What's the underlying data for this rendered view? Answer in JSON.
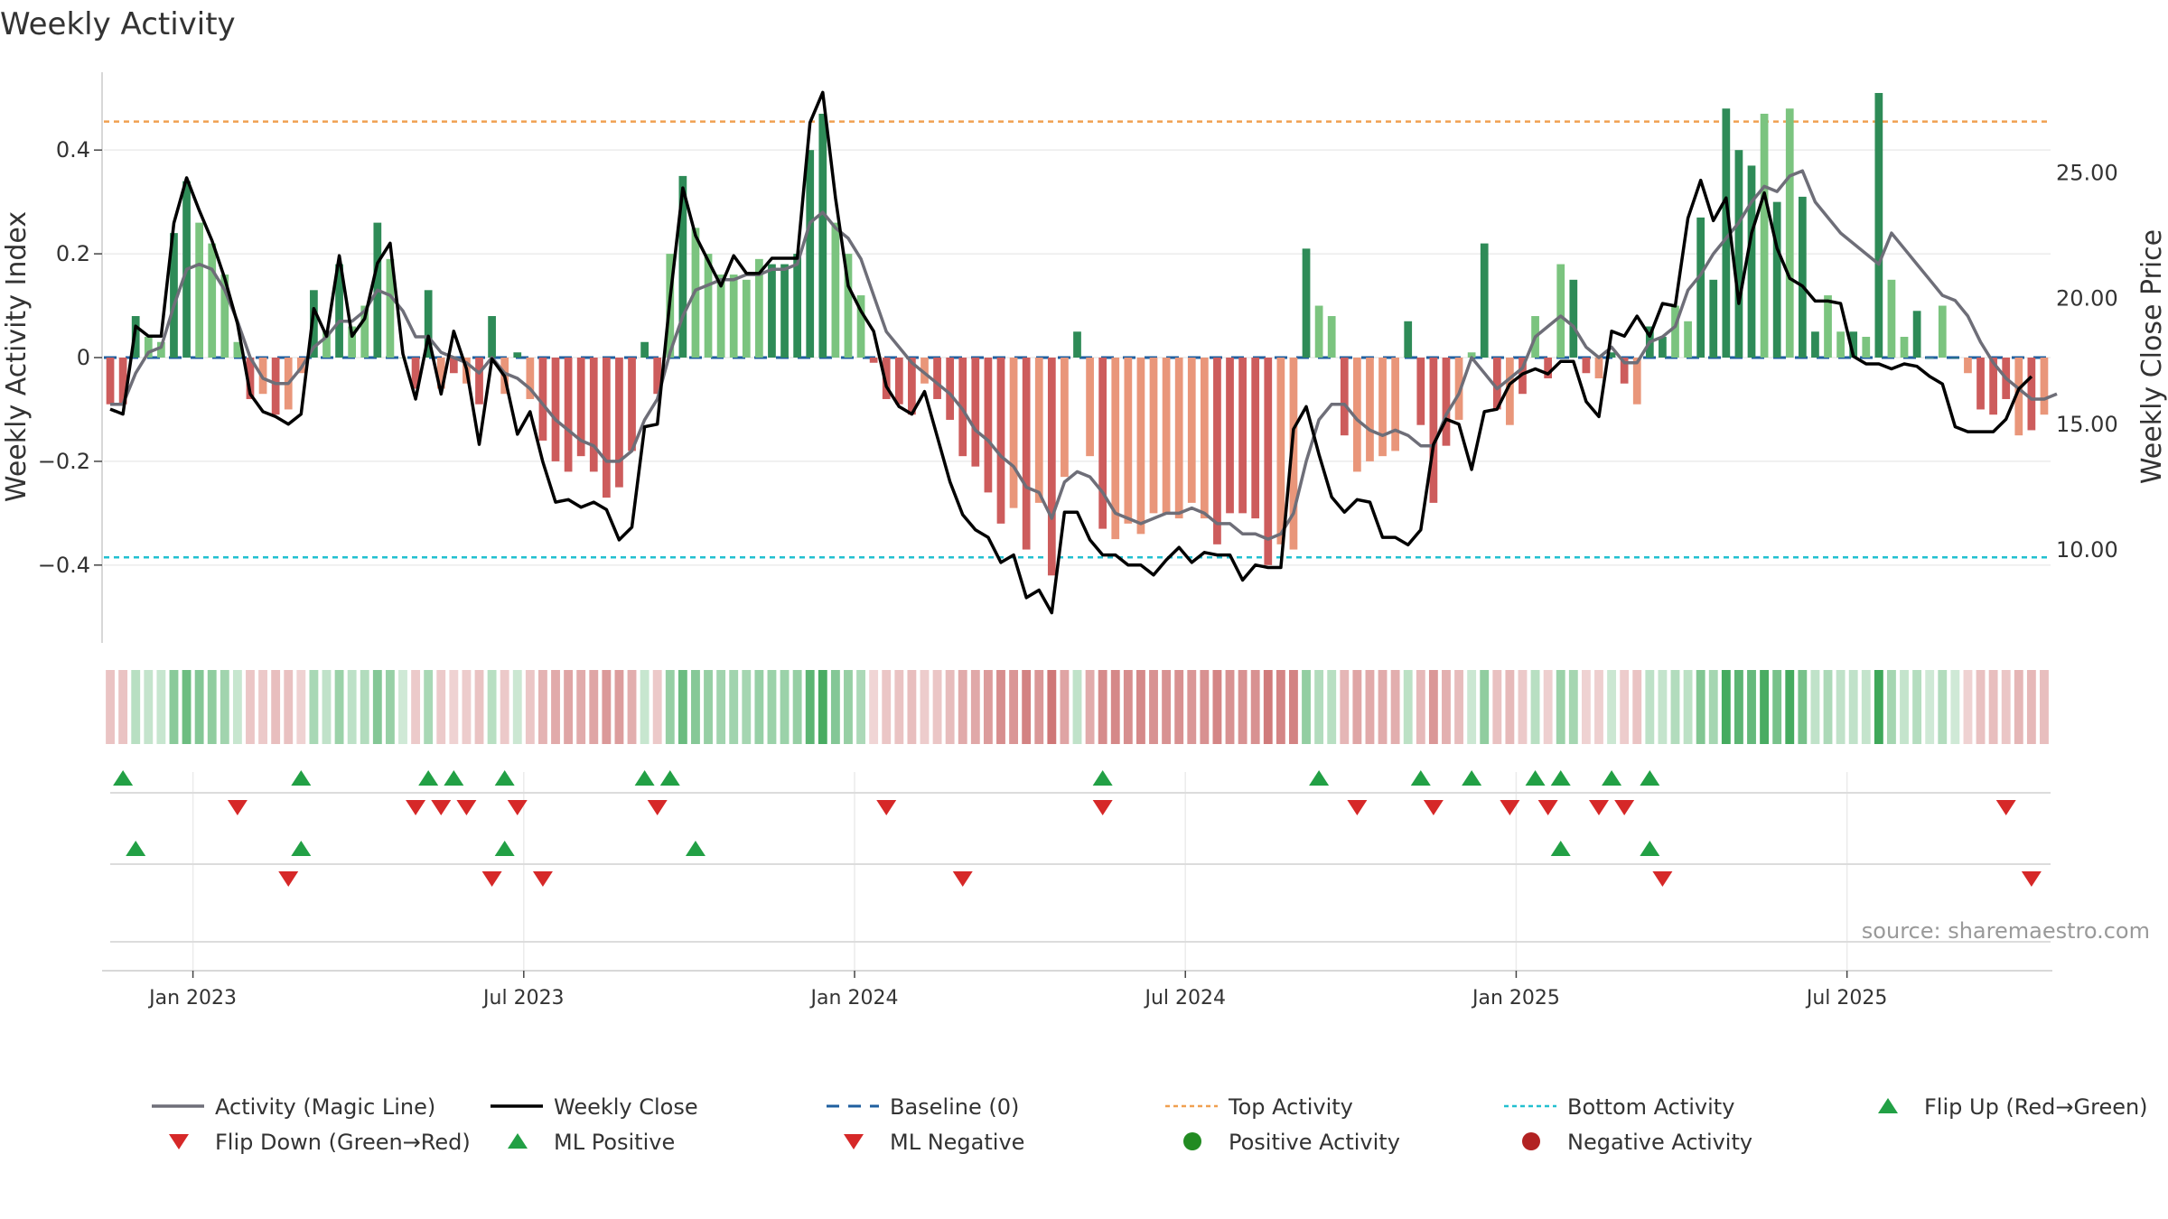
{
  "colors": {
    "strong_green": "#2e8b57",
    "light_green": "#7bc47f",
    "strong_red": "#cd5c5c",
    "light_red": "#e9967a",
    "magic_line": "#6e6e78",
    "close_line": "#000000",
    "baseline": "#1f5f9f",
    "top_line": "#f0a050",
    "bottom_line": "#22c0d0",
    "flip_up": "#22a045",
    "flip_down": "#d62828",
    "positive_dot": "#228b22",
    "negative_dot": "#b22222"
  },
  "chart_data": {
    "type": "bar+line",
    "title": "Weekly Activity",
    "ylabel_left": "Weekly Activity Index",
    "ylabel_right": "Weekly Close Price",
    "left_ticks": [
      {
        "value": 0.4,
        "label": "0.4"
      },
      {
        "value": 0.2,
        "label": "0.2"
      },
      {
        "value": 0,
        "label": "0"
      },
      {
        "value": -0.2,
        "label": "−0.2"
      },
      {
        "value": -0.4,
        "label": "−0.4"
      }
    ],
    "left_ylim": [
      -0.55,
      0.55
    ],
    "right_ticks": [
      {
        "value": 25,
        "label": "25.00"
      },
      {
        "value": 20,
        "label": "20.00"
      },
      {
        "value": 15,
        "label": "15.00"
      },
      {
        "value": 10,
        "label": "10.00"
      }
    ],
    "right_ylim": [
      6.3,
      29.0
    ],
    "top_activity": 0.455,
    "bottom_activity": -0.385,
    "x_ticks": [
      "Jan 2023",
      "Jul 2023",
      "Jan 2024",
      "Jul 2024",
      "Jan 2025",
      "Jul 2025"
    ],
    "x_tick_weeks": [
      7,
      33,
      59,
      85,
      111,
      137
    ],
    "activity": [
      -0.09,
      -0.09,
      0.08,
      0.04,
      0.03,
      0.24,
      0.34,
      0.26,
      0.22,
      0.16,
      0.03,
      -0.08,
      -0.07,
      -0.11,
      -0.1,
      -0.03,
      0.13,
      0.05,
      0.18,
      0.06,
      0.1,
      0.26,
      0.19,
      0.0,
      -0.06,
      0.13,
      -0.06,
      -0.03,
      -0.05,
      -0.09,
      0.08,
      -0.07,
      0.01,
      -0.08,
      -0.16,
      -0.2,
      -0.22,
      -0.19,
      -0.22,
      -0.27,
      -0.25,
      -0.18,
      0.03,
      -0.07,
      0.2,
      0.35,
      0.25,
      0.2,
      0.16,
      0.16,
      0.15,
      0.19,
      0.18,
      0.18,
      0.2,
      0.4,
      0.47,
      0.26,
      0.2,
      0.12,
      -0.01,
      -0.08,
      -0.09,
      -0.11,
      -0.05,
      -0.08,
      -0.12,
      -0.19,
      -0.21,
      -0.26,
      -0.32,
      -0.29,
      -0.37,
      -0.28,
      -0.42,
      -0.23,
      0.05,
      -0.19,
      -0.33,
      -0.35,
      -0.32,
      -0.34,
      -0.3,
      -0.3,
      -0.31,
      -0.28,
      -0.31,
      -0.36,
      -0.3,
      -0.3,
      -0.31,
      -0.4,
      -0.36,
      -0.37,
      0.21,
      0.1,
      0.08,
      -0.15,
      -0.22,
      -0.2,
      -0.19,
      -0.18,
      0.07,
      -0.13,
      -0.28,
      -0.17,
      -0.12,
      0.01,
      0.22,
      -0.1,
      -0.13,
      -0.07,
      0.08,
      -0.04,
      0.18,
      0.15,
      -0.03,
      -0.04,
      0.01,
      -0.05,
      -0.09,
      0.06,
      0.04,
      0.1,
      0.07,
      0.27,
      0.15,
      0.48,
      0.4,
      0.37,
      0.47,
      0.3,
      0.48,
      0.31,
      0.05,
      0.12,
      0.05,
      0.05,
      0.04,
      0.51,
      0.15,
      0.04,
      0.09,
      0.0,
      0.1,
      0.0,
      -0.03,
      -0.1,
      -0.11,
      -0.08,
      -0.15,
      -0.14,
      -0.11
    ],
    "activity_strong": [
      1,
      1,
      1,
      0,
      0,
      1,
      1,
      0,
      0,
      0,
      0,
      1,
      0,
      1,
      0,
      0,
      1,
      0,
      1,
      0,
      0,
      1,
      0,
      0,
      1,
      1,
      0,
      1,
      0,
      1,
      1,
      0,
      1,
      0,
      1,
      1,
      1,
      1,
      1,
      1,
      1,
      1,
      1,
      1,
      0,
      1,
      0,
      0,
      0,
      0,
      0,
      0,
      1,
      1,
      1,
      1,
      1,
      0,
      0,
      0,
      1,
      1,
      1,
      1,
      0,
      1,
      1,
      1,
      1,
      1,
      1,
      0,
      1,
      0,
      1,
      0,
      1,
      0,
      1,
      0,
      0,
      0,
      0,
      0,
      0,
      0,
      0,
      1,
      1,
      1,
      1,
      1,
      0,
      0,
      1,
      0,
      0,
      1,
      0,
      0,
      0,
      0,
      1,
      1,
      1,
      1,
      0,
      0,
      1,
      1,
      0,
      1,
      0,
      1,
      0,
      1,
      1,
      0,
      1,
      1,
      0,
      1,
      1,
      0,
      0,
      1,
      1,
      1,
      1,
      1,
      0,
      1,
      0,
      1,
      1,
      0,
      0,
      1,
      0,
      1,
      0,
      0,
      1,
      0,
      0,
      1,
      0,
      1,
      1,
      1,
      0,
      1,
      0,
      0
    ],
    "magic_line": [
      -0.09,
      -0.09,
      -0.03,
      0.01,
      0.02,
      0.1,
      0.17,
      0.18,
      0.17,
      0.13,
      0.07,
      0.0,
      -0.04,
      -0.05,
      -0.05,
      -0.02,
      0.02,
      0.04,
      0.07,
      0.07,
      0.09,
      0.13,
      0.12,
      0.09,
      0.04,
      0.04,
      0.01,
      0.0,
      -0.01,
      -0.03,
      -0.0,
      -0.03,
      -0.04,
      -0.06,
      -0.09,
      -0.12,
      -0.14,
      -0.16,
      -0.17,
      -0.2,
      -0.2,
      -0.18,
      -0.12,
      -0.08,
      0.01,
      0.08,
      0.13,
      0.14,
      0.15,
      0.15,
      0.16,
      0.16,
      0.17,
      0.17,
      0.18,
      0.26,
      0.28,
      0.25,
      0.23,
      0.19,
      0.12,
      0.05,
      0.02,
      -0.01,
      -0.03,
      -0.05,
      -0.07,
      -0.1,
      -0.14,
      -0.16,
      -0.19,
      -0.21,
      -0.25,
      -0.26,
      -0.31,
      -0.24,
      -0.22,
      -0.23,
      -0.26,
      -0.3,
      -0.31,
      -0.32,
      -0.31,
      -0.3,
      -0.3,
      -0.29,
      -0.3,
      -0.32,
      -0.32,
      -0.34,
      -0.34,
      -0.35,
      -0.34,
      -0.3,
      -0.2,
      -0.12,
      -0.09,
      -0.09,
      -0.12,
      -0.14,
      -0.15,
      -0.14,
      -0.15,
      -0.17,
      -0.17,
      -0.11,
      -0.07,
      0.0,
      -0.03,
      -0.06,
      -0.04,
      -0.02,
      0.04,
      0.06,
      0.08,
      0.06,
      0.02,
      -0.0,
      0.02,
      -0.01,
      -0.01,
      0.03,
      0.04,
      0.06,
      0.13,
      0.16,
      0.2,
      0.23,
      0.26,
      0.3,
      0.33,
      0.32,
      0.35,
      0.36,
      0.3,
      0.27,
      0.24,
      0.22,
      0.2,
      0.18,
      0.24,
      0.21,
      0.18,
      0.15,
      0.12,
      0.11,
      0.08,
      0.03,
      -0.01,
      -0.04,
      -0.06,
      -0.08,
      -0.08,
      -0.07
    ],
    "weekly_close": [
      15.6,
      15.4,
      18.9,
      18.5,
      18.5,
      23.0,
      24.8,
      23.5,
      22.3,
      20.8,
      19.0,
      16.2,
      15.5,
      15.3,
      15.0,
      15.4,
      19.6,
      18.5,
      21.7,
      18.5,
      19.2,
      21.4,
      22.2,
      17.8,
      16.0,
      18.5,
      16.2,
      18.7,
      17.2,
      14.2,
      17.6,
      16.9,
      14.6,
      15.5,
      13.5,
      11.9,
      12.0,
      11.7,
      11.9,
      11.6,
      10.4,
      10.9,
      14.9,
      15.0,
      20.0,
      24.4,
      22.5,
      21.5,
      20.5,
      21.7,
      21.0,
      21.0,
      21.6,
      21.6,
      21.6,
      27.0,
      28.2,
      24.0,
      20.5,
      19.5,
      18.7,
      16.5,
      15.7,
      15.4,
      16.3,
      14.5,
      12.7,
      11.4,
      10.8,
      10.5,
      9.5,
      9.8,
      8.1,
      8.4,
      7.5,
      11.5,
      11.5,
      10.4,
      9.8,
      9.8,
      9.4,
      9.4,
      9.0,
      9.6,
      10.1,
      9.5,
      9.9,
      9.8,
      9.8,
      8.8,
      9.4,
      9.3,
      9.3,
      14.8,
      15.7,
      13.8,
      12.1,
      11.5,
      12.0,
      11.9,
      10.5,
      10.5,
      10.2,
      10.8,
      14.2,
      15.2,
      15.0,
      13.2,
      15.5,
      15.6,
      16.6,
      17.0,
      17.2,
      17.0,
      17.5,
      17.5,
      15.9,
      15.3,
      18.7,
      18.5,
      19.3,
      18.5,
      19.8,
      19.7,
      23.2,
      24.7,
      23.1,
      24.0,
      19.8,
      22.6,
      24.2,
      22.0,
      20.8,
      20.5,
      19.9,
      19.9,
      19.8,
      17.7,
      17.4,
      17.4,
      17.2,
      17.4,
      17.3,
      16.9,
      16.6,
      14.9,
      14.7,
      14.7,
      14.7,
      15.2,
      16.4,
      16.9
    ],
    "flip_up_weeks": [
      1,
      15,
      25,
      27,
      31,
      42,
      44,
      78,
      95,
      103,
      107,
      112,
      114,
      118,
      121
    ],
    "flip_down_weeks": [
      10,
      24,
      26,
      28,
      32,
      43,
      61,
      78,
      98,
      104,
      110,
      113,
      117,
      119,
      149
    ],
    "ml_positive_weeks": [
      2,
      15,
      31,
      46,
      114,
      121
    ],
    "ml_negative_weeks": [
      14,
      30,
      34,
      67,
      122,
      151
    ],
    "source": "source: sharemaestro.com",
    "legend": [
      {
        "key": "magic",
        "label": "Activity (Magic Line)"
      },
      {
        "key": "close",
        "label": "Weekly Close"
      },
      {
        "key": "baseline",
        "label": "Baseline (0)"
      },
      {
        "key": "top",
        "label": "Top Activity"
      },
      {
        "key": "bottom",
        "label": "Bottom Activity"
      },
      {
        "key": "flipup",
        "label": "Flip Up (Red→Green)"
      },
      {
        "key": "flipdown",
        "label": "Flip Down (Green→Red)"
      },
      {
        "key": "mlpos",
        "label": "ML Positive"
      },
      {
        "key": "mlneg",
        "label": "ML Negative"
      },
      {
        "key": "posdot",
        "label": "Positive Activity"
      },
      {
        "key": "negdot",
        "label": "Negative Activity"
      }
    ]
  }
}
